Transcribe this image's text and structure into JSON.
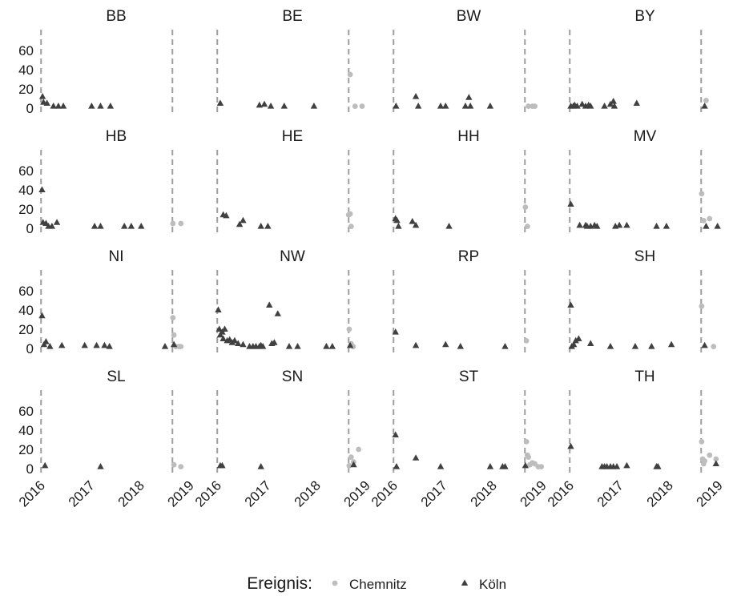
{
  "chart_data": {
    "type": "scatter",
    "facet_by": "Bundesland",
    "facet_layout": "4 columns x 4 rows",
    "x_tick_labels": [
      "2016",
      "2017",
      "2018",
      "2019"
    ],
    "x_ticks": [
      2016,
      2017,
      2018,
      2019
    ],
    "xlim": [
      2015.98,
      2019.05
    ],
    "y_tick_labels": [
      "0",
      "20",
      "40",
      "60"
    ],
    "y_ticks": [
      0,
      20,
      40,
      60
    ],
    "ylim": [
      0,
      75
    ],
    "event_lines": [
      2016.0,
      2018.65
    ],
    "grid": false,
    "legend": {
      "title": "Ereignis:",
      "position": "bottom",
      "items": [
        {
          "label": "Chemnitz",
          "color": "#bdbdbd",
          "shape": "circle"
        },
        {
          "label": "Köln",
          "color": "#404040",
          "shape": "triangle"
        }
      ]
    },
    "panels": [
      {
        "name": "BB",
        "koeln": [
          [
            2016.03,
            12
          ],
          [
            2016.05,
            6
          ],
          [
            2016.12,
            5
          ],
          [
            2016.25,
            2
          ],
          [
            2016.35,
            2
          ],
          [
            2016.45,
            2
          ],
          [
            2017.02,
            2
          ],
          [
            2017.2,
            2
          ],
          [
            2017.4,
            2
          ]
        ],
        "chemnitz": []
      },
      {
        "name": "BE",
        "koeln": [
          [
            2016.06,
            5
          ],
          [
            2016.85,
            3
          ],
          [
            2016.95,
            4
          ],
          [
            2017.08,
            2
          ],
          [
            2017.35,
            2
          ],
          [
            2017.95,
            2
          ]
        ],
        "chemnitz": [
          [
            2018.68,
            35
          ],
          [
            2018.78,
            2
          ],
          [
            2018.92,
            2
          ]
        ]
      },
      {
        "name": "BW",
        "koeln": [
          [
            2016.05,
            2
          ],
          [
            2016.45,
            12
          ],
          [
            2016.5,
            2
          ],
          [
            2016.95,
            2
          ],
          [
            2017.05,
            2
          ],
          [
            2017.45,
            2
          ],
          [
            2017.52,
            11
          ],
          [
            2017.55,
            2
          ],
          [
            2017.95,
            2
          ]
        ],
        "chemnitz": [
          [
            2018.72,
            2
          ],
          [
            2018.8,
            2
          ],
          [
            2018.85,
            2
          ]
        ]
      },
      {
        "name": "BY",
        "koeln": [
          [
            2016.02,
            2
          ],
          [
            2016.07,
            2
          ],
          [
            2016.1,
            3
          ],
          [
            2016.15,
            2
          ],
          [
            2016.25,
            4
          ],
          [
            2016.32,
            2
          ],
          [
            2016.38,
            3
          ],
          [
            2016.42,
            2
          ],
          [
            2016.7,
            2
          ],
          [
            2016.82,
            4
          ],
          [
            2016.88,
            7
          ],
          [
            2016.9,
            2
          ],
          [
            2017.35,
            5
          ],
          [
            2018.72,
            2
          ]
        ],
        "chemnitz": [
          [
            2018.75,
            8
          ]
        ]
      },
      {
        "name": "HB",
        "koeln": [
          [
            2016.02,
            40
          ],
          [
            2016.04,
            6
          ],
          [
            2016.1,
            5
          ],
          [
            2016.15,
            2
          ],
          [
            2016.22,
            2
          ],
          [
            2016.32,
            6
          ],
          [
            2017.08,
            2
          ],
          [
            2017.2,
            2
          ],
          [
            2017.68,
            2
          ],
          [
            2017.82,
            2
          ],
          [
            2018.02,
            2
          ]
        ],
        "chemnitz": [
          [
            2018.66,
            5
          ],
          [
            2018.82,
            5
          ]
        ]
      },
      {
        "name": "HE",
        "koeln": [
          [
            2016.12,
            14
          ],
          [
            2016.18,
            13
          ],
          [
            2016.45,
            4
          ],
          [
            2016.52,
            8
          ],
          [
            2016.88,
            2
          ],
          [
            2017.02,
            2
          ]
        ],
        "chemnitz": [
          [
            2018.65,
            14
          ],
          [
            2018.68,
            15
          ],
          [
            2018.7,
            2
          ]
        ]
      },
      {
        "name": "HH",
        "koeln": [
          [
            2016.04,
            10
          ],
          [
            2016.07,
            8
          ],
          [
            2016.1,
            2
          ],
          [
            2016.38,
            7
          ],
          [
            2016.45,
            3
          ],
          [
            2017.12,
            2
          ]
        ],
        "chemnitz": [
          [
            2018.66,
            22
          ],
          [
            2018.7,
            2
          ]
        ]
      },
      {
        "name": "MV",
        "koeln": [
          [
            2016.02,
            25
          ],
          [
            2016.2,
            3
          ],
          [
            2016.32,
            3
          ],
          [
            2016.35,
            2
          ],
          [
            2016.42,
            2
          ],
          [
            2016.5,
            3
          ],
          [
            2016.55,
            2
          ],
          [
            2016.92,
            2
          ],
          [
            2017.0,
            3
          ],
          [
            2017.15,
            3
          ],
          [
            2017.75,
            2
          ],
          [
            2017.95,
            2
          ],
          [
            2018.75,
            2
          ],
          [
            2018.98,
            2
          ]
        ],
        "chemnitz": [
          [
            2018.66,
            36
          ],
          [
            2018.7,
            8
          ],
          [
            2018.82,
            10
          ]
        ]
      },
      {
        "name": "NI",
        "koeln": [
          [
            2016.02,
            34
          ],
          [
            2016.06,
            4
          ],
          [
            2016.1,
            7
          ],
          [
            2016.18,
            2
          ],
          [
            2016.42,
            3
          ],
          [
            2016.88,
            3
          ],
          [
            2017.12,
            3
          ],
          [
            2017.28,
            3
          ],
          [
            2017.38,
            2
          ],
          [
            2018.5,
            2
          ],
          [
            2018.68,
            4
          ]
        ],
        "chemnitz": [
          [
            2018.66,
            32
          ],
          [
            2018.68,
            14
          ],
          [
            2018.72,
            2
          ],
          [
            2018.78,
            2
          ],
          [
            2018.82,
            2
          ]
        ]
      },
      {
        "name": "NW",
        "koeln": [
          [
            2016.02,
            40
          ],
          [
            2016.04,
            20
          ],
          [
            2016.06,
            14
          ],
          [
            2016.1,
            17
          ],
          [
            2016.12,
            10
          ],
          [
            2016.15,
            20
          ],
          [
            2016.2,
            8
          ],
          [
            2016.25,
            9
          ],
          [
            2016.3,
            6
          ],
          [
            2016.35,
            8
          ],
          [
            2016.42,
            5
          ],
          [
            2016.52,
            4
          ],
          [
            2016.65,
            2
          ],
          [
            2016.72,
            2
          ],
          [
            2016.78,
            2
          ],
          [
            2016.85,
            2
          ],
          [
            2016.88,
            3
          ],
          [
            2016.92,
            2
          ],
          [
            2017.05,
            45
          ],
          [
            2017.1,
            5
          ],
          [
            2017.15,
            6
          ],
          [
            2017.22,
            36
          ],
          [
            2017.45,
            2
          ],
          [
            2017.62,
            2
          ],
          [
            2018.2,
            2
          ],
          [
            2018.32,
            2
          ],
          [
            2018.68,
            3
          ]
        ],
        "chemnitz": [
          [
            2018.66,
            20
          ],
          [
            2018.7,
            5
          ],
          [
            2018.74,
            2
          ]
        ]
      },
      {
        "name": "RP",
        "koeln": [
          [
            2016.04,
            17
          ],
          [
            2016.45,
            3
          ],
          [
            2017.05,
            4
          ],
          [
            2017.35,
            2
          ],
          [
            2018.25,
            2
          ]
        ],
        "chemnitz": [
          [
            2018.68,
            8
          ]
        ]
      },
      {
        "name": "SH",
        "koeln": [
          [
            2016.02,
            45
          ],
          [
            2016.04,
            2
          ],
          [
            2016.08,
            4
          ],
          [
            2016.12,
            8
          ],
          [
            2016.18,
            10
          ],
          [
            2016.42,
            5
          ],
          [
            2016.82,
            2
          ],
          [
            2017.32,
            2
          ],
          [
            2017.65,
            2
          ],
          [
            2018.05,
            4
          ],
          [
            2018.72,
            3
          ]
        ],
        "chemnitz": [
          [
            2018.66,
            44
          ],
          [
            2018.9,
            2
          ]
        ]
      },
      {
        "name": "SL",
        "koeln": [
          [
            2016.08,
            3
          ],
          [
            2017.2,
            2
          ]
        ],
        "chemnitz": [
          [
            2018.68,
            4
          ],
          [
            2018.82,
            2
          ]
        ]
      },
      {
        "name": "SN",
        "koeln": [
          [
            2016.06,
            3
          ],
          [
            2016.1,
            3
          ],
          [
            2016.88,
            2
          ],
          [
            2018.75,
            4
          ]
        ],
        "chemnitz": [
          [
            2018.66,
            3
          ],
          [
            2018.7,
            12
          ],
          [
            2018.75,
            7
          ],
          [
            2018.85,
            20
          ]
        ]
      },
      {
        "name": "ST",
        "koeln": [
          [
            2016.04,
            35
          ],
          [
            2016.06,
            2
          ],
          [
            2016.45,
            11
          ],
          [
            2016.95,
            2
          ],
          [
            2017.95,
            2
          ],
          [
            2018.2,
            2
          ],
          [
            2018.25,
            2
          ],
          [
            2018.66,
            3
          ]
        ],
        "chemnitz": [
          [
            2018.68,
            28
          ],
          [
            2018.7,
            14
          ],
          [
            2018.72,
            12
          ],
          [
            2018.75,
            4
          ],
          [
            2018.8,
            6
          ],
          [
            2018.85,
            5
          ],
          [
            2018.92,
            2
          ],
          [
            2018.98,
            2
          ]
        ]
      },
      {
        "name": "TH",
        "koeln": [
          [
            2016.02,
            23
          ],
          [
            2016.65,
            2
          ],
          [
            2016.7,
            2
          ],
          [
            2016.75,
            2
          ],
          [
            2016.82,
            2
          ],
          [
            2016.88,
            2
          ],
          [
            2016.95,
            2
          ],
          [
            2017.15,
            3
          ],
          [
            2017.75,
            2
          ],
          [
            2017.78,
            2
          ],
          [
            2018.95,
            5
          ]
        ],
        "chemnitz": [
          [
            2018.66,
            28
          ],
          [
            2018.68,
            10
          ],
          [
            2018.7,
            5
          ],
          [
            2018.72,
            8
          ],
          [
            2018.82,
            14
          ],
          [
            2018.95,
            10
          ]
        ]
      }
    ]
  }
}
